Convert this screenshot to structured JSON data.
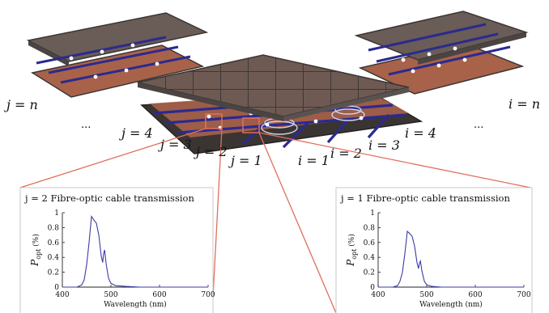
{
  "labels": {
    "j_n": "j = n",
    "i_n": "i = n",
    "j_4": "j = 4",
    "j_3": "j = 3",
    "j_2": "j = 2",
    "j_1": "j = 1",
    "i_1": "i = 1",
    "i_2": "i = 2",
    "i_3": "i = 3",
    "i_4": "i = 4",
    "dots_left": "...",
    "dots_right": "..."
  },
  "colors": {
    "panel_top": "#5a5553",
    "panel_edge": "#3a3634",
    "cell": "#7a5848",
    "copper": "#b86a48",
    "fibre": "#2b2a8f",
    "node": "#ffffff",
    "zoom_line": "#e0705c",
    "curve": "#3b3ba6"
  },
  "chart_data": [
    {
      "type": "line",
      "title": "j = 2 Fibre-optic cable transmission",
      "xlabel": "Wavelength (nm)",
      "ylabel": "P_opt (%)",
      "xlim": [
        400,
        700
      ],
      "ylim": [
        0,
        1
      ],
      "xticks": [
        "400",
        "500",
        "600",
        "700"
      ],
      "yticks": [
        "0",
        "0.2",
        "0.4",
        "0.6",
        "0.8",
        "1"
      ],
      "series": [
        {
          "x": [
            400,
            430,
            440,
            445,
            450,
            455,
            460,
            465,
            470,
            475,
            480,
            483,
            485,
            487,
            490,
            495,
            500,
            510,
            530,
            560,
            600,
            650,
            700
          ],
          "y": [
            0,
            0,
            0.03,
            0.1,
            0.3,
            0.6,
            0.95,
            0.9,
            0.86,
            0.7,
            0.42,
            0.33,
            0.45,
            0.5,
            0.32,
            0.12,
            0.05,
            0.02,
            0.01,
            0,
            0,
            0,
            0
          ]
        }
      ]
    },
    {
      "type": "line",
      "title": "j = 1 Fibre-optic cable transmission",
      "xlabel": "Wavelength (nm)",
      "ylabel": "P_opt (%)",
      "xlim": [
        400,
        700
      ],
      "ylim": [
        0,
        1
      ],
      "xticks": [
        "400",
        "500",
        "600",
        "700"
      ],
      "yticks": [
        "0",
        "0.2",
        "0.4",
        "0.6",
        "0.8",
        "1"
      ],
      "series": [
        {
          "x": [
            400,
            430,
            440,
            445,
            450,
            455,
            460,
            465,
            470,
            475,
            480,
            483,
            485,
            487,
            490,
            495,
            500,
            510,
            530,
            560,
            600,
            650,
            700
          ],
          "y": [
            0,
            0,
            0.02,
            0.08,
            0.2,
            0.45,
            0.75,
            0.72,
            0.68,
            0.55,
            0.33,
            0.25,
            0.32,
            0.35,
            0.22,
            0.08,
            0.03,
            0.01,
            0,
            0,
            0,
            0,
            0
          ]
        }
      ]
    }
  ]
}
